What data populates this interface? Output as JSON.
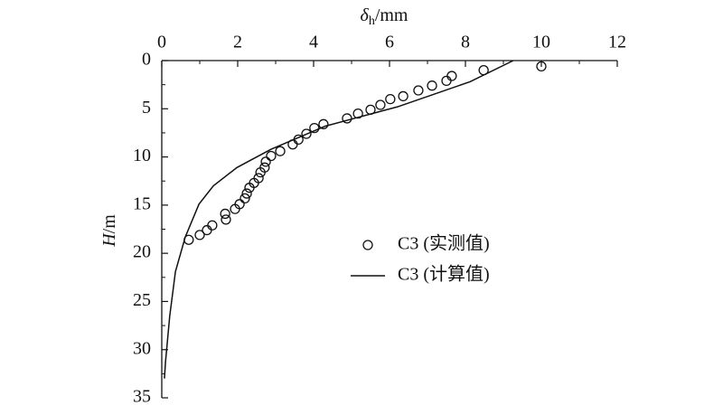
{
  "chart_data": {
    "type": "scatter",
    "xlabel": {
      "symbol": "δ",
      "subscript": "h",
      "unit": "/mm"
    },
    "ylabel": {
      "symbol": "H",
      "unit": "/m"
    },
    "xlim": [
      0,
      12
    ],
    "xticks": [
      0,
      2,
      4,
      6,
      8,
      10,
      12
    ],
    "ylim": [
      0,
      35
    ],
    "yticks": [
      0,
      5,
      10,
      15,
      20,
      25,
      30,
      35
    ],
    "y_inverted": true,
    "x_axis_position": "top",
    "series": [
      {
        "name": "C3 (实测值)",
        "type": "scatter",
        "color": "#111111",
        "x": [
          10.0,
          8.48,
          7.64,
          7.5,
          7.12,
          6.76,
          6.36,
          6.02,
          5.76,
          5.5,
          5.17,
          4.88,
          4.26,
          4.02,
          3.81,
          3.6,
          3.45,
          3.12,
          2.88,
          2.74,
          2.71,
          2.6,
          2.55,
          2.43,
          2.31,
          2.24,
          2.19,
          2.05,
          1.93,
          1.67,
          1.69,
          1.33,
          1.19,
          1.0,
          0.71
        ],
        "values": [
          0.6,
          1.0,
          1.6,
          2.1,
          2.6,
          3.1,
          3.7,
          4.0,
          4.6,
          5.1,
          5.5,
          6.0,
          6.6,
          7.0,
          7.6,
          8.2,
          8.7,
          9.4,
          9.9,
          10.5,
          11.1,
          11.6,
          12.2,
          12.7,
          13.2,
          13.8,
          14.3,
          14.9,
          15.4,
          15.9,
          16.5,
          17.1,
          17.6,
          18.1,
          18.6
        ]
      },
      {
        "name": "C3 (计算值)",
        "type": "line",
        "color": "#111111",
        "x": [
          9.26,
          8.12,
          6.21,
          4.31,
          2.88,
          1.98,
          1.36,
          0.98,
          0.62,
          0.36,
          0.21,
          0.1,
          0.07
        ],
        "values": [
          0,
          2.2,
          4.8,
          6.8,
          9.2,
          11.1,
          13.0,
          14.9,
          18.3,
          21.9,
          26.5,
          31.2,
          33.0
        ]
      }
    ]
  }
}
